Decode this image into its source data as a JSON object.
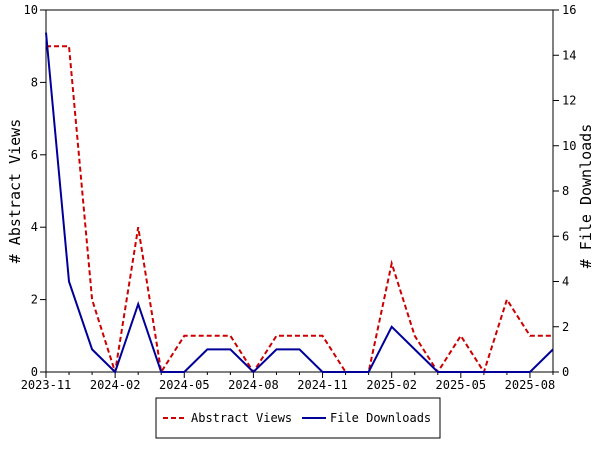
{
  "chart_data": {
    "type": "line",
    "title": "",
    "x": [
      "2023-11",
      "2023-12",
      "2024-01",
      "2024-02",
      "2024-03",
      "2024-04",
      "2024-05",
      "2024-06",
      "2024-07",
      "2024-08",
      "2024-09",
      "2024-10",
      "2024-11",
      "2024-12",
      "2025-01",
      "2025-02",
      "2025-03",
      "2025-04",
      "2025-05",
      "2025-06",
      "2025-07",
      "2025-08",
      "2025-09"
    ],
    "x_tick_labels": [
      "2023-11",
      "2024-02",
      "2024-05",
      "2024-08",
      "2024-11",
      "2025-02",
      "2025-05",
      "2025-08"
    ],
    "ylabel": "# Abstract Views",
    "y2label": "# File Downloads",
    "ylim": [
      0,
      10
    ],
    "y2lim": [
      0,
      16
    ],
    "y_ticks": [
      "0",
      "2",
      "4",
      "6",
      "8",
      "10"
    ],
    "y2_ticks": [
      "0",
      "2",
      "4",
      "6",
      "8",
      "10",
      "12",
      "14",
      "16"
    ],
    "grid": false,
    "legend_position": "bottom",
    "series": [
      {
        "name": "Abstract Views",
        "axis": "left",
        "color": "#cc0000",
        "style": "dashed",
        "values": [
          9,
          9,
          2,
          0,
          4,
          0,
          1,
          1,
          1,
          0,
          1,
          1,
          1,
          0,
          0,
          3,
          1,
          0,
          1,
          0,
          2,
          1,
          1
        ]
      },
      {
        "name": "File Downloads",
        "axis": "right",
        "color": "#000099",
        "style": "solid",
        "values": [
          15,
          4,
          1,
          0,
          3,
          0,
          0,
          1,
          1,
          0,
          1,
          1,
          0,
          0,
          0,
          2,
          1,
          0,
          0,
          0,
          0,
          0,
          1
        ]
      }
    ]
  }
}
